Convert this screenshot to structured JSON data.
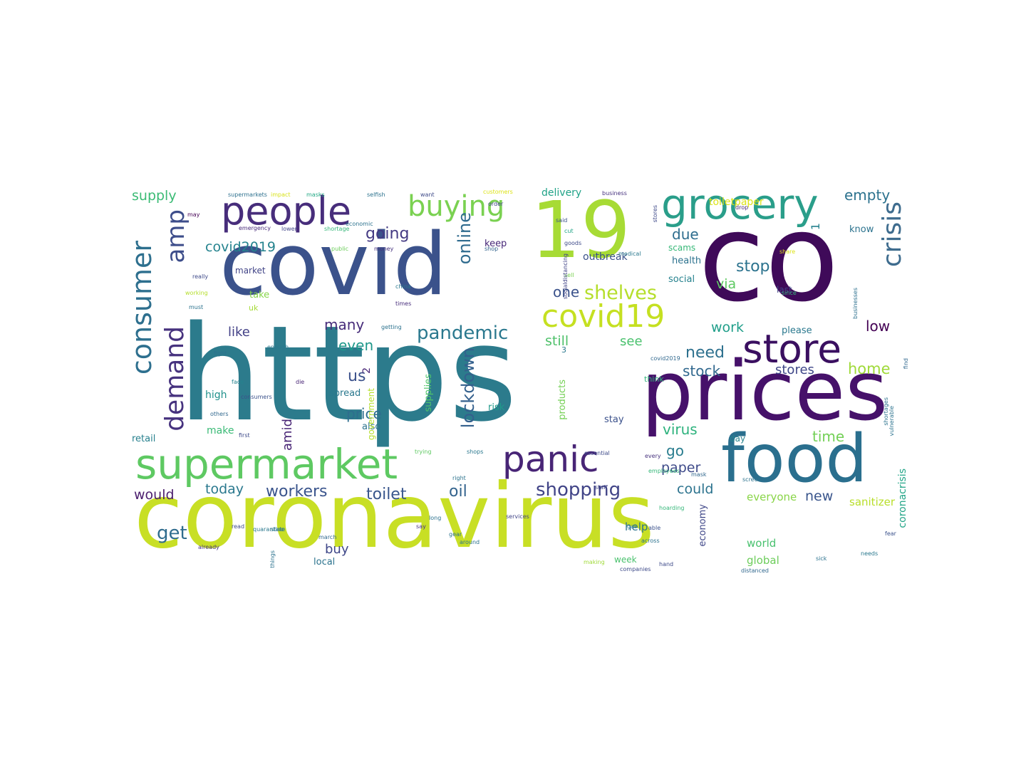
{
  "words": [
    {
      "text": "https",
      "color": "#2c7b8c"
    },
    {
      "text": "coronavirus",
      "color": "#c8df25"
    },
    {
      "text": "co",
      "color": "#3f0a59"
    },
    {
      "text": "covid",
      "color": "#3b528b"
    },
    {
      "text": "prices",
      "color": "#46116a"
    },
    {
      "text": "19",
      "color": "#a7db35"
    },
    {
      "text": "food",
      "color": "#2a6f8e"
    },
    {
      "text": "grocery",
      "color": "#2a9e8a"
    },
    {
      "text": "people",
      "color": "#472d7b"
    },
    {
      "text": "supermarket",
      "color": "#5ec962"
    },
    {
      "text": "panic",
      "color": "#482576"
    },
    {
      "text": "store",
      "color": "#3a0f60"
    },
    {
      "text": "covid19",
      "color": "#c5e021"
    },
    {
      "text": "consumer",
      "color": "#2d6f8e"
    },
    {
      "text": "demand",
      "color": "#46327e"
    },
    {
      "text": "amp",
      "color": "#3d4d8a"
    },
    {
      "text": "buying",
      "color": "#7ad151"
    },
    {
      "text": "crisis",
      "color": "#3e6c8e"
    },
    {
      "text": "shelves",
      "color": "#b5de2b"
    },
    {
      "text": "pandemic",
      "color": "#2a788e"
    },
    {
      "text": "shopping",
      "color": "#414487"
    },
    {
      "text": "online",
      "color": "#2f6b8e"
    },
    {
      "text": "lockdown",
      "color": "#34608d"
    },
    {
      "text": "workers",
      "color": "#3a548c"
    },
    {
      "text": "toilet",
      "color": "#39568c"
    },
    {
      "text": "oil",
      "color": "#33638d"
    },
    {
      "text": "would",
      "color": "#4b1e6e"
    },
    {
      "text": "today",
      "color": "#2a788e"
    },
    {
      "text": "get",
      "color": "#2f6c8e"
    },
    {
      "text": "stock",
      "color": "#31688e"
    },
    {
      "text": "stores",
      "color": "#3f4788"
    },
    {
      "text": "need",
      "color": "#2d708e"
    },
    {
      "text": "home",
      "color": "#a0da39"
    },
    {
      "text": "stop",
      "color": "#2c738e"
    },
    {
      "text": "via",
      "color": "#5ec962"
    },
    {
      "text": "work",
      "color": "#1f9e89"
    },
    {
      "text": "low",
      "color": "#440154"
    },
    {
      "text": "due",
      "color": "#2e6d8e"
    },
    {
      "text": "one",
      "color": "#3b528b"
    },
    {
      "text": "going",
      "color": "#443a83"
    },
    {
      "text": "covid2019",
      "color": "#25838e"
    },
    {
      "text": "supply",
      "color": "#3bbb75"
    },
    {
      "text": "empty",
      "color": "#2c728e"
    },
    {
      "text": "us",
      "color": "#3b518b"
    },
    {
      "text": "even",
      "color": "#1f988b"
    },
    {
      "text": "many",
      "color": "#472c7a"
    },
    {
      "text": "like",
      "color": "#424086"
    },
    {
      "text": "price",
      "color": "#2e6e8e"
    },
    {
      "text": "still",
      "color": "#4fc16b"
    },
    {
      "text": "see",
      "color": "#4ac16d"
    },
    {
      "text": "time",
      "color": "#73d056"
    },
    {
      "text": "virus",
      "color": "#2db27d"
    },
    {
      "text": "go",
      "color": "#287c8e"
    },
    {
      "text": "paper",
      "color": "#3e4a89"
    },
    {
      "text": "could",
      "color": "#2c738e"
    },
    {
      "text": "new",
      "color": "#39558c"
    },
    {
      "text": "buy",
      "color": "#3f4889"
    },
    {
      "text": "amid",
      "color": "#482475"
    },
    {
      "text": "help",
      "color": "#2c738e"
    },
    {
      "text": "world",
      "color": "#48c16e"
    },
    {
      "text": "global",
      "color": "#6ccd5a"
    },
    {
      "text": "everyone",
      "color": "#89d548"
    },
    {
      "text": "sanitizer",
      "color": "#b8de29"
    },
    {
      "text": "coronacrisis",
      "color": "#20a486"
    },
    {
      "text": "economy",
      "color": "#3f4788"
    },
    {
      "text": "products",
      "color": "#74d055"
    },
    {
      "text": "delivery",
      "color": "#1fa287"
    },
    {
      "text": "toiletpaper",
      "color": "#dde318"
    },
    {
      "text": "outbreak",
      "color": "#3b528b"
    },
    {
      "text": "health",
      "color": "#2c728e"
    },
    {
      "text": "social",
      "color": "#26828e"
    },
    {
      "text": "scams",
      "color": "#37b878"
    },
    {
      "text": "keep",
      "color": "#482878"
    },
    {
      "text": "market",
      "color": "#414487"
    },
    {
      "text": "take",
      "color": "#86d549"
    },
    {
      "text": "high",
      "color": "#21918c"
    },
    {
      "text": "make",
      "color": "#3aba76"
    },
    {
      "text": "retail",
      "color": "#27808e"
    },
    {
      "text": "spread",
      "color": "#2a788e"
    },
    {
      "text": "also",
      "color": "#2c738e"
    },
    {
      "text": "risk",
      "color": "#1f9a8a"
    },
    {
      "text": "stay",
      "color": "#3b518b"
    },
    {
      "text": "day",
      "color": "#26828e"
    },
    {
      "text": "last",
      "color": "#414487"
    },
    {
      "text": "please",
      "color": "#2a788e"
    },
    {
      "text": "know",
      "color": "#2c738e"
    },
    {
      "text": "think",
      "color": "#31b57b"
    },
    {
      "text": "week",
      "color": "#4ac16d"
    },
    {
      "text": "local",
      "color": "#2c738e"
    },
    {
      "text": "uk",
      "color": "#a5db36"
    },
    {
      "text": "supplies",
      "color": "#50c46a"
    },
    {
      "text": "government",
      "color": "#b5de2b"
    },
    {
      "text": "2",
      "color": "#482677"
    },
    {
      "text": "3",
      "color": "#2a788e"
    },
    {
      "text": "1",
      "color": "#26828e"
    },
    {
      "text": "supermarkets",
      "color": "#2d708e"
    },
    {
      "text": "impact",
      "color": "#d8e219"
    },
    {
      "text": "masks",
      "color": "#22a884"
    },
    {
      "text": "selfish",
      "color": "#2c728e"
    },
    {
      "text": "want",
      "color": "#3e4a89"
    },
    {
      "text": "customers",
      "color": "#dde318"
    },
    {
      "text": "business",
      "color": "#46327e"
    },
    {
      "text": "may",
      "color": "#440154"
    },
    {
      "text": "emergency",
      "color": "#472a7a"
    },
    {
      "text": "lower",
      "color": "#414487"
    },
    {
      "text": "shortage",
      "color": "#35b779"
    },
    {
      "text": "economic",
      "color": "#2c728e"
    },
    {
      "text": "public",
      "color": "#6ccd5a"
    },
    {
      "text": "money",
      "color": "#46327e"
    },
    {
      "text": "shop",
      "color": "#33638d"
    },
    {
      "text": "order",
      "color": "#414487"
    },
    {
      "text": "said",
      "color": "#3b528b"
    },
    {
      "text": "cut",
      "color": "#20a486"
    },
    {
      "text": "goods",
      "color": "#3e4a89"
    },
    {
      "text": "sell",
      "color": "#7ad151"
    },
    {
      "text": "socialdistancing",
      "color": "#414487"
    },
    {
      "text": "medical",
      "color": "#2a788e"
    },
    {
      "text": "share",
      "color": "#dde318"
    },
    {
      "text": "drop",
      "color": "#482878"
    },
    {
      "text": "stores",
      "color": "#3e4989"
    },
    {
      "text": "businesses",
      "color": "#2d708e"
    },
    {
      "text": "since",
      "color": "#35b779"
    },
    {
      "text": "china",
      "color": "#2a788e"
    },
    {
      "text": "times",
      "color": "#472d7b"
    },
    {
      "text": "getting",
      "color": "#2c728e"
    },
    {
      "text": "working",
      "color": "#b5de2b"
    },
    {
      "text": "really",
      "color": "#3e4a89"
    },
    {
      "text": "must",
      "color": "#2c738e"
    },
    {
      "text": "enough",
      "color": "#2a788e"
    },
    {
      "text": "fight",
      "color": "#2c728e"
    },
    {
      "text": "face",
      "color": "#26828e"
    },
    {
      "text": "consumers",
      "color": "#3b528b"
    },
    {
      "text": "die",
      "color": "#482475"
    },
    {
      "text": "others",
      "color": "#31688e"
    },
    {
      "text": "first",
      "color": "#3e4a89"
    },
    {
      "text": "shops",
      "color": "#2a788e"
    },
    {
      "text": "trying",
      "color": "#5ec962"
    },
    {
      "text": "right",
      "color": "#2c738e"
    },
    {
      "text": "essential",
      "color": "#3e4a89"
    },
    {
      "text": "every",
      "color": "#46327e"
    },
    {
      "text": "mask",
      "color": "#31688e"
    },
    {
      "text": "screens",
      "color": "#2c728e"
    },
    {
      "text": "able",
      "color": "#3b528b"
    },
    {
      "text": "hoarding",
      "color": "#35b779"
    },
    {
      "text": "staff",
      "color": "#414487"
    },
    {
      "text": "state",
      "color": "#2c728e"
    },
    {
      "text": "march",
      "color": "#31688e"
    },
    {
      "text": "read",
      "color": "#3e4a89"
    },
    {
      "text": "quarantine",
      "color": "#2a788e"
    },
    {
      "text": "things",
      "color": "#2c728e"
    },
    {
      "text": "already",
      "color": "#46327e"
    },
    {
      "text": "across",
      "color": "#2c738e"
    },
    {
      "text": "companies",
      "color": "#3e4a89"
    },
    {
      "text": "distanced",
      "color": "#31688e"
    },
    {
      "text": "sick",
      "color": "#2c728e"
    },
    {
      "text": "needs",
      "color": "#2a788e"
    },
    {
      "text": "shortages",
      "color": "#2c728e"
    },
    {
      "text": "vulnerable",
      "color": "#2c738e"
    },
    {
      "text": "find",
      "color": "#31688e"
    },
    {
      "text": "fear",
      "color": "#3b528b"
    },
    {
      "text": "long",
      "color": "#2c728e"
    },
    {
      "text": "services",
      "color": "#414487"
    },
    {
      "text": "making",
      "color": "#a0da39"
    },
    {
      "text": "hand",
      "color": "#3e4a89"
    },
    {
      "text": "gas",
      "color": "#2a788e"
    },
    {
      "text": "say",
      "color": "#46327e"
    },
    {
      "text": "gear",
      "color": "#2c728e"
    },
    {
      "text": "employees",
      "color": "#35b779"
    },
    {
      "text": "around",
      "color": "#2c738e"
    },
    {
      "text": "covid2019",
      "color": "#31688e"
    }
  ]
}
